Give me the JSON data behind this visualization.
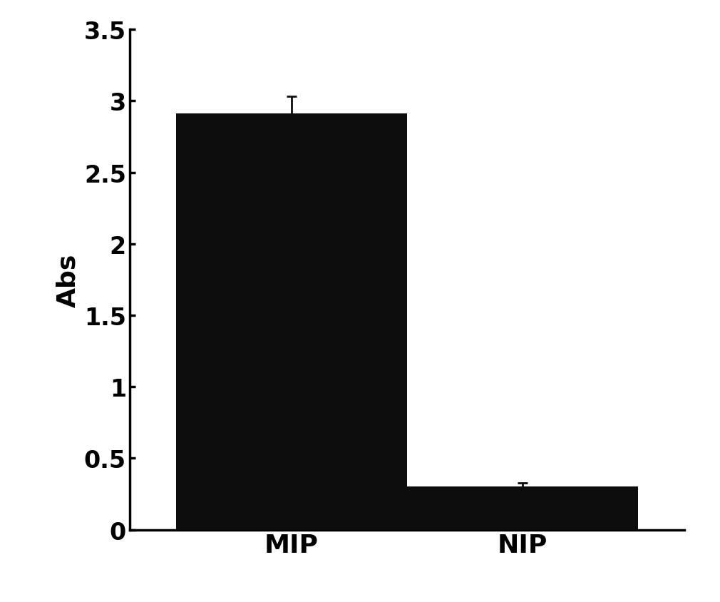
{
  "categories": [
    "MIP",
    "NIP"
  ],
  "values": [
    2.91,
    0.3
  ],
  "errors": [
    0.12,
    0.025
  ],
  "bar_color": "#0d0d0d",
  "bar_width": 0.5,
  "ylabel": "Abs",
  "ylim": [
    0,
    3.5
  ],
  "yticks": [
    0,
    0.5,
    1,
    1.5,
    2,
    2.5,
    3,
    3.5
  ],
  "background_color": "#ffffff",
  "ylabel_fontsize": 26,
  "tick_fontsize": 24,
  "xlabel_fontsize": 26,
  "capsize": 5,
  "error_linewidth": 2.0,
  "spine_linewidth": 2.5,
  "bar_positions": [
    0.25,
    0.75
  ],
  "xlim": [
    0,
    1
  ]
}
